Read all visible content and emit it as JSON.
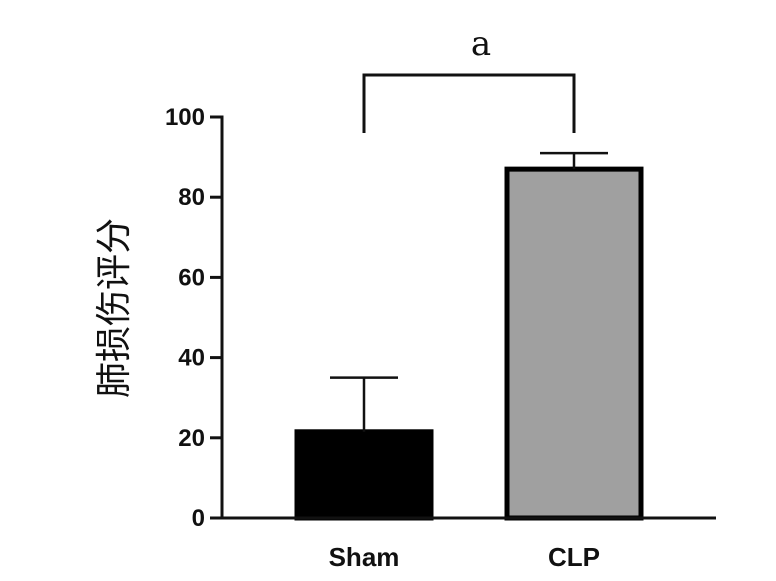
{
  "chart_data": {
    "type": "bar",
    "title": "",
    "xlabel": "",
    "ylabel": "肺损伤评分",
    "ylim": [
      0,
      100
    ],
    "yticks": [
      0,
      20,
      40,
      60,
      80,
      100
    ],
    "ytick_labels": [
      "0",
      "20",
      "40",
      "60",
      "80",
      "100"
    ],
    "categories": [
      "Sham",
      "CLP"
    ],
    "values": [
      21.5,
      87
    ],
    "errors": [
      13.5,
      4
    ],
    "bar_colors": [
      "#000000",
      "#a0a0a0"
    ],
    "annotation": {
      "text": "a",
      "between": [
        "Sham",
        "CLP"
      ]
    },
    "grid": false
  }
}
